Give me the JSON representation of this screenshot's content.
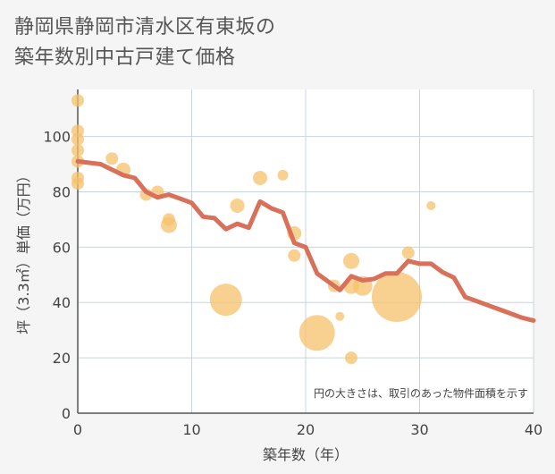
{
  "title_line1": "静岡県静岡市清水区有東坂の",
  "title_line2": "築年数別中古戸建て価格",
  "colors": {
    "bubble": "#f5c26b",
    "line": "#d9705a",
    "grid": "#c8d4e0",
    "plot_bg": "#ffffff"
  },
  "chart_data": {
    "type": "scatter",
    "xlabel": "築年数（年）",
    "ylabel": "坪（3.3㎡）単価（万円）",
    "xlim": [
      0,
      40
    ],
    "ylim": [
      0,
      117
    ],
    "x_ticks": [
      0,
      10,
      20,
      30,
      40
    ],
    "y_ticks": [
      0,
      20,
      40,
      60,
      80,
      100
    ],
    "grid": true,
    "note": "円の大きさは、取引のあった物件面積を示す",
    "bubbles": [
      {
        "x": 0,
        "y": 113,
        "r": 7
      },
      {
        "x": 0,
        "y": 102,
        "r": 7
      },
      {
        "x": 0,
        "y": 99,
        "r": 7
      },
      {
        "x": 0,
        "y": 95,
        "r": 7
      },
      {
        "x": 0,
        "y": 91,
        "r": 7
      },
      {
        "x": 0,
        "y": 85,
        "r": 7
      },
      {
        "x": 0,
        "y": 83,
        "r": 7
      },
      {
        "x": 3,
        "y": 92,
        "r": 7
      },
      {
        "x": 4,
        "y": 88,
        "r": 8
      },
      {
        "x": 6,
        "y": 79,
        "r": 7
      },
      {
        "x": 7,
        "y": 80,
        "r": 7
      },
      {
        "x": 8,
        "y": 70,
        "r": 7
      },
      {
        "x": 8,
        "y": 68,
        "r": 9
      },
      {
        "x": 13,
        "y": 41,
        "r": 18
      },
      {
        "x": 14,
        "y": 75,
        "r": 8
      },
      {
        "x": 16,
        "y": 85,
        "r": 8
      },
      {
        "x": 18,
        "y": 86,
        "r": 6
      },
      {
        "x": 19,
        "y": 65,
        "r": 8
      },
      {
        "x": 19,
        "y": 57,
        "r": 7
      },
      {
        "x": 21,
        "y": 29,
        "r": 20
      },
      {
        "x": 22.5,
        "y": 46,
        "r": 7
      },
      {
        "x": 23,
        "y": 35,
        "r": 5
      },
      {
        "x": 24,
        "y": 55,
        "r": 9
      },
      {
        "x": 24,
        "y": 46,
        "r": 9
      },
      {
        "x": 24,
        "y": 20,
        "r": 7
      },
      {
        "x": 25,
        "y": 46,
        "r": 11
      },
      {
        "x": 28,
        "y": 42,
        "r": 28
      },
      {
        "x": 29,
        "y": 58,
        "r": 7
      },
      {
        "x": 31,
        "y": 75,
        "r": 5
      }
    ],
    "trend": {
      "x": [
        0,
        1,
        2,
        3,
        4,
        5,
        6,
        7,
        8,
        9,
        10,
        11,
        12,
        13,
        14,
        15,
        16,
        17,
        18,
        19,
        20,
        21,
        22,
        23,
        24,
        25,
        26,
        27,
        28,
        29,
        30,
        31,
        32,
        33,
        34,
        35,
        36,
        37,
        38,
        39,
        40
      ],
      "y": [
        91,
        90.5,
        90,
        88,
        86,
        85,
        80,
        78,
        79,
        77.5,
        76,
        71,
        70.5,
        66.5,
        68.5,
        67,
        76.5,
        74,
        72.5,
        61.5,
        60,
        50.5,
        47.5,
        44.5,
        49.5,
        48,
        48.5,
        50.5,
        50.5,
        55,
        54,
        54,
        51,
        49,
        42,
        40.5,
        39,
        37.5,
        36,
        34.5,
        33.5
      ]
    }
  }
}
